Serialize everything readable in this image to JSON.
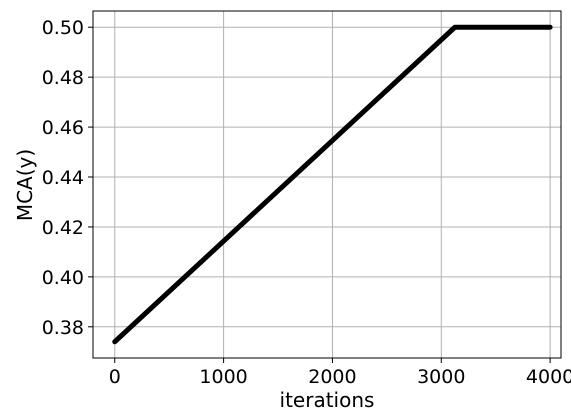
{
  "chart_data": {
    "type": "line",
    "title": "",
    "xlabel": "iterations",
    "ylabel": "MCA(y)",
    "xlim": [
      -200,
      4100
    ],
    "ylim": [
      0.3675,
      0.5065
    ],
    "xticks": [
      0,
      1000,
      2000,
      3000,
      4000
    ],
    "xtick_labels": [
      "0",
      "1000",
      "2000",
      "3000",
      "4000"
    ],
    "yticks": [
      0.38,
      0.4,
      0.42,
      0.44,
      0.46,
      0.48,
      0.5
    ],
    "ytick_labels": [
      "0.38",
      "0.40",
      "0.42",
      "0.44",
      "0.46",
      "0.48",
      "0.50"
    ],
    "grid": true,
    "series": [
      {
        "color": "#000000",
        "x": [
          0,
          3125,
          4000
        ],
        "y": [
          0.374,
          0.5,
          0.5
        ]
      }
    ]
  }
}
